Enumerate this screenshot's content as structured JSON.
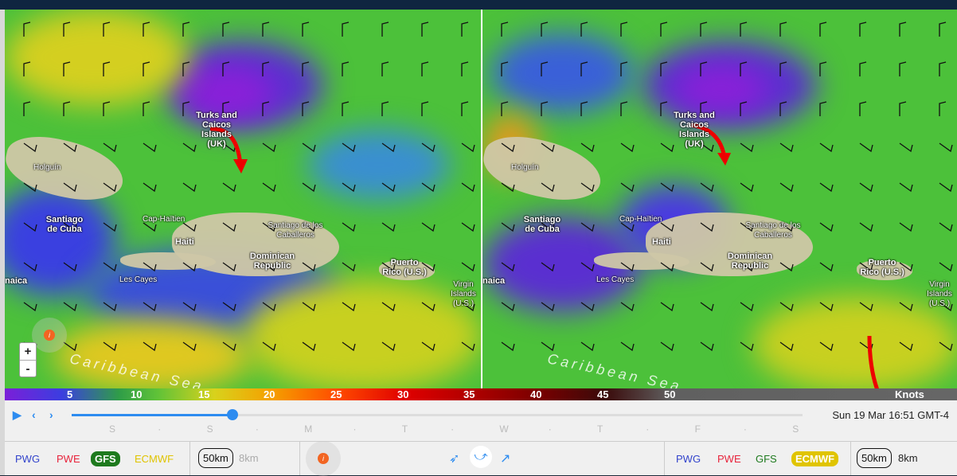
{
  "legend": {
    "unit": "Knots",
    "ticks": [
      "5",
      "10",
      "15",
      "20",
      "25",
      "30",
      "35",
      "40",
      "45",
      "50"
    ]
  },
  "timeline": {
    "days": [
      "S",
      "·",
      "S",
      "·",
      "M",
      "·",
      "T",
      "·",
      "W",
      "·",
      "T",
      "·",
      "F",
      "·",
      "S"
    ],
    "progress_percent": 22,
    "datetime": "Sun 19 Mar 16:51 GMT-4"
  },
  "left_panel": {
    "models": [
      {
        "label": "PWG",
        "color": "#3344cc",
        "selected": false
      },
      {
        "label": "PWE",
        "color": "#e8243c",
        "selected": false
      },
      {
        "label": "GFS",
        "color": "#1e7a1e",
        "selected": true
      },
      {
        "label": "ECMWF",
        "color": "#e0c400",
        "selected": false
      }
    ],
    "resolutions": [
      "50km",
      "8km"
    ],
    "selected_resolution": "50km"
  },
  "right_panel": {
    "models": [
      {
        "label": "PWG",
        "color": "#3344cc",
        "selected": false
      },
      {
        "label": "PWE",
        "color": "#e8243c",
        "selected": false
      },
      {
        "label": "GFS",
        "color": "#1e7a1e",
        "selected": false
      },
      {
        "label": "ECMWF",
        "color": "#e0c400",
        "selected": true
      }
    ],
    "resolutions": [
      "50km",
      "8km"
    ],
    "selected_resolution": "50km"
  },
  "map": {
    "zoom_in": "+",
    "zoom_out": "-",
    "info": "i",
    "sea_label": "Caribbean Sea",
    "places": {
      "turks": "Turks and Caicos Islands (UK)",
      "holguin": "Holguín",
      "santiago_cuba": "Santiago de Cuba",
      "cap_haitien": "Cap-Haïtien",
      "haiti": "Haiti",
      "santiago_cab": "Santiago de los Caballeros",
      "dominican": "Dominican Republic",
      "les_cayes": "Les Cayes",
      "puerto_rico": "Puerto Rico (U.S.)",
      "virgin": "Virgin Islands (U.S.)",
      "jamaica": "naica"
    }
  },
  "icons": {
    "play": "play-icon",
    "prev": "chevron-left-icon",
    "next": "chevron-right-icon",
    "info": "info-icon",
    "wind_modes": [
      "arrow-outline-icon",
      "wind-barb-icon",
      "arrow-icon"
    ]
  }
}
